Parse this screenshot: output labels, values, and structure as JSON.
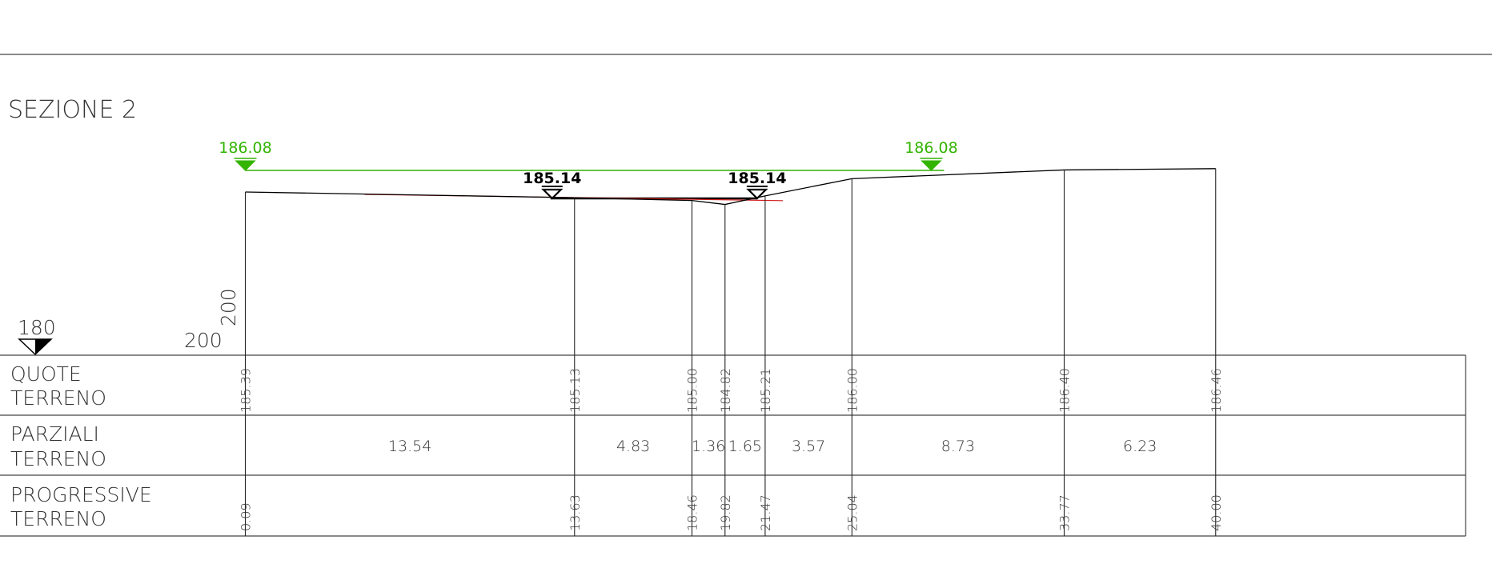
{
  "title": "SEZIONE 2",
  "datum": {
    "level": "180",
    "scale_horizontal": "200",
    "scale_vertical": "200"
  },
  "rows": [
    {
      "line1": "QUOTE",
      "line2": "TERRENO"
    },
    {
      "line1": "PARZIALI",
      "line2": "TERRENO"
    },
    {
      "line1": "PROGRESSIVE",
      "line2": "TERRENO"
    }
  ],
  "colors": {
    "water_level": "#32b400",
    "lower_level": "#000000",
    "red_line": "#d21e1e",
    "ground": "#000000"
  },
  "stations": [
    {
      "progressive": "0.09",
      "elevation": "185.39"
    },
    {
      "progressive": "13.63",
      "elevation": "185.13"
    },
    {
      "progressive": "18.46",
      "elevation": "185.00"
    },
    {
      "progressive": "19.82",
      "elevation": "184.82"
    },
    {
      "progressive": "21.47",
      "elevation": "185.21"
    },
    {
      "progressive": "25.04",
      "elevation": "186.00"
    },
    {
      "progressive": "33.77",
      "elevation": "186.40"
    },
    {
      "progressive": "40.00",
      "elevation": "186.46"
    }
  ],
  "partials": [
    "13.54",
    "4.83",
    "1.36",
    "1.65",
    "3.57",
    "8.73",
    "6.23"
  ],
  "water_levels": {
    "high": {
      "value": "186.08",
      "marker_stations": [
        0.09,
        33.77
      ]
    },
    "low": {
      "value": "185.14",
      "marker_stations": [
        13.63,
        21.47
      ]
    }
  }
}
